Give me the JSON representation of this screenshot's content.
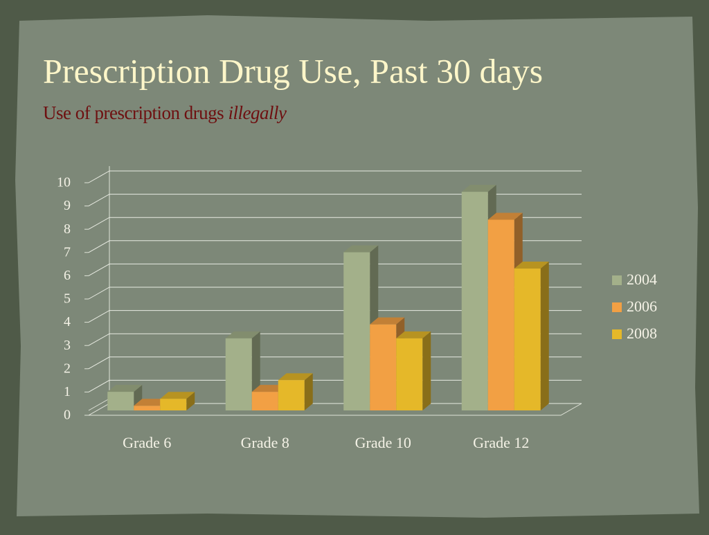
{
  "chart_data": {
    "type": "bar3d",
    "title": "Prescription Drug Use, Past 30 days",
    "subtitle": "Use of prescription drugs",
    "subtitle_emphasis": "illegally",
    "categories": [
      "Grade 6",
      "Grade 8",
      "Grade 10",
      "Grade 12"
    ],
    "series": [
      {
        "name": "2004",
        "color": "#a3b08a",
        "values": [
          0.8,
          3.1,
          6.8,
          9.4
        ]
      },
      {
        "name": "2006",
        "color": "#f2a044",
        "values": [
          0.2,
          0.8,
          3.7,
          8.2
        ]
      },
      {
        "name": "2008",
        "color": "#e5b829",
        "values": [
          0.5,
          1.3,
          3.1,
          6.1
        ]
      }
    ],
    "ylim": [
      0,
      10
    ],
    "yticks": [
      0,
      1,
      2,
      3,
      4,
      5,
      6,
      7,
      8,
      9,
      10
    ],
    "grid": true,
    "legend": "right"
  }
}
